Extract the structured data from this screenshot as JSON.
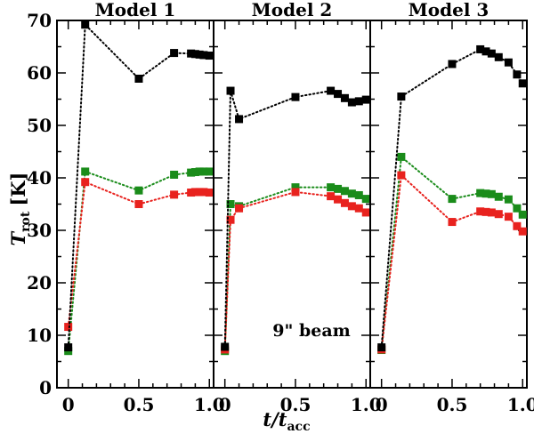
{
  "chart_data": {
    "type": "scatter",
    "ylabel_main": "T",
    "ylabel_sub": "rot",
    "ylabel_unit": "[K]",
    "xlabel_main": "t/t",
    "xlabel_sub": "acc",
    "ylim": [
      0,
      70
    ],
    "xlim": [
      -0.08,
      1.03
    ],
    "yticks": [
      0,
      10,
      20,
      30,
      40,
      50,
      60,
      70
    ],
    "ytick_labels": [
      "0",
      "10",
      "20",
      "30",
      "40",
      "50",
      "60",
      "70"
    ],
    "xticks": [
      0,
      0.5,
      1.0
    ],
    "xtick_labels": [
      "0",
      "0.5",
      "1.0"
    ],
    "annotation": "9\" beam",
    "series_colors": {
      "black": "#000000",
      "green": "#1a8c1a",
      "red": "#e8221e"
    },
    "panels": [
      {
        "title": "Model 1",
        "series": [
          {
            "name": "black",
            "x": [
              0,
              0.12,
              0.5,
              0.75,
              0.87,
              0.9,
              0.93,
              0.96,
              1.0
            ],
            "y": [
              7.7,
              69.2,
              58.9,
              63.8,
              63.7,
              63.6,
              63.5,
              63.4,
              63.3
            ]
          },
          {
            "name": "green",
            "x": [
              0,
              0.12,
              0.5,
              0.75,
              0.87,
              0.9,
              0.93,
              0.96,
              1.0
            ],
            "y": [
              7.0,
              41.2,
              37.6,
              40.6,
              41.0,
              41.1,
              41.2,
              41.2,
              41.2
            ]
          },
          {
            "name": "red",
            "x": [
              0,
              0.12,
              0.5,
              0.75,
              0.87,
              0.9,
              0.93,
              0.96,
              1.0
            ],
            "y": [
              11.6,
              39.2,
              35.0,
              36.8,
              37.2,
              37.3,
              37.3,
              37.3,
              37.2
            ]
          }
        ]
      },
      {
        "title": "Model 2",
        "series": [
          {
            "name": "black",
            "x": [
              0,
              0.04,
              0.1,
              0.5,
              0.75,
              0.8,
              0.85,
              0.9,
              0.95,
              1.0
            ],
            "y": [
              7.8,
              56.6,
              51.2,
              55.4,
              56.6,
              56.0,
              55.2,
              54.4,
              54.6,
              54.9
            ]
          },
          {
            "name": "green",
            "x": [
              0,
              0.04,
              0.1,
              0.5,
              0.75,
              0.8,
              0.85,
              0.9,
              0.95,
              1.0
            ],
            "y": [
              7.0,
              35.0,
              34.6,
              38.2,
              38.2,
              37.9,
              37.5,
              37.0,
              36.7,
              36.0
            ]
          },
          {
            "name": "red",
            "x": [
              0,
              0.04,
              0.1,
              0.5,
              0.75,
              0.8,
              0.85,
              0.9,
              0.95,
              1.0
            ],
            "y": [
              7.3,
              32.0,
              34.2,
              37.3,
              36.5,
              35.9,
              35.2,
              34.6,
              34.2,
              33.4
            ]
          }
        ]
      },
      {
        "title": "Model 3",
        "series": [
          {
            "name": "black",
            "x": [
              0,
              0.14,
              0.5,
              0.7,
              0.74,
              0.78,
              0.83,
              0.9,
              0.96,
              1.0
            ],
            "y": [
              7.7,
              55.5,
              61.7,
              64.5,
              64.1,
              63.7,
              63.0,
              62.0,
              59.7,
              58.0
            ]
          },
          {
            "name": "green",
            "x": [
              0,
              0.14,
              0.5,
              0.7,
              0.74,
              0.78,
              0.83,
              0.9,
              0.96,
              1.0
            ],
            "y": [
              7.2,
              44.0,
              36.0,
              37.1,
              37.0,
              36.9,
              36.4,
              35.9,
              34.2,
              33.0
            ]
          },
          {
            "name": "red",
            "x": [
              0,
              0.14,
              0.5,
              0.7,
              0.74,
              0.78,
              0.83,
              0.9,
              0.96,
              1.0
            ],
            "y": [
              7.3,
              40.5,
              31.6,
              33.6,
              33.5,
              33.4,
              33.1,
              32.6,
              30.8,
              29.8
            ]
          }
        ]
      }
    ]
  }
}
